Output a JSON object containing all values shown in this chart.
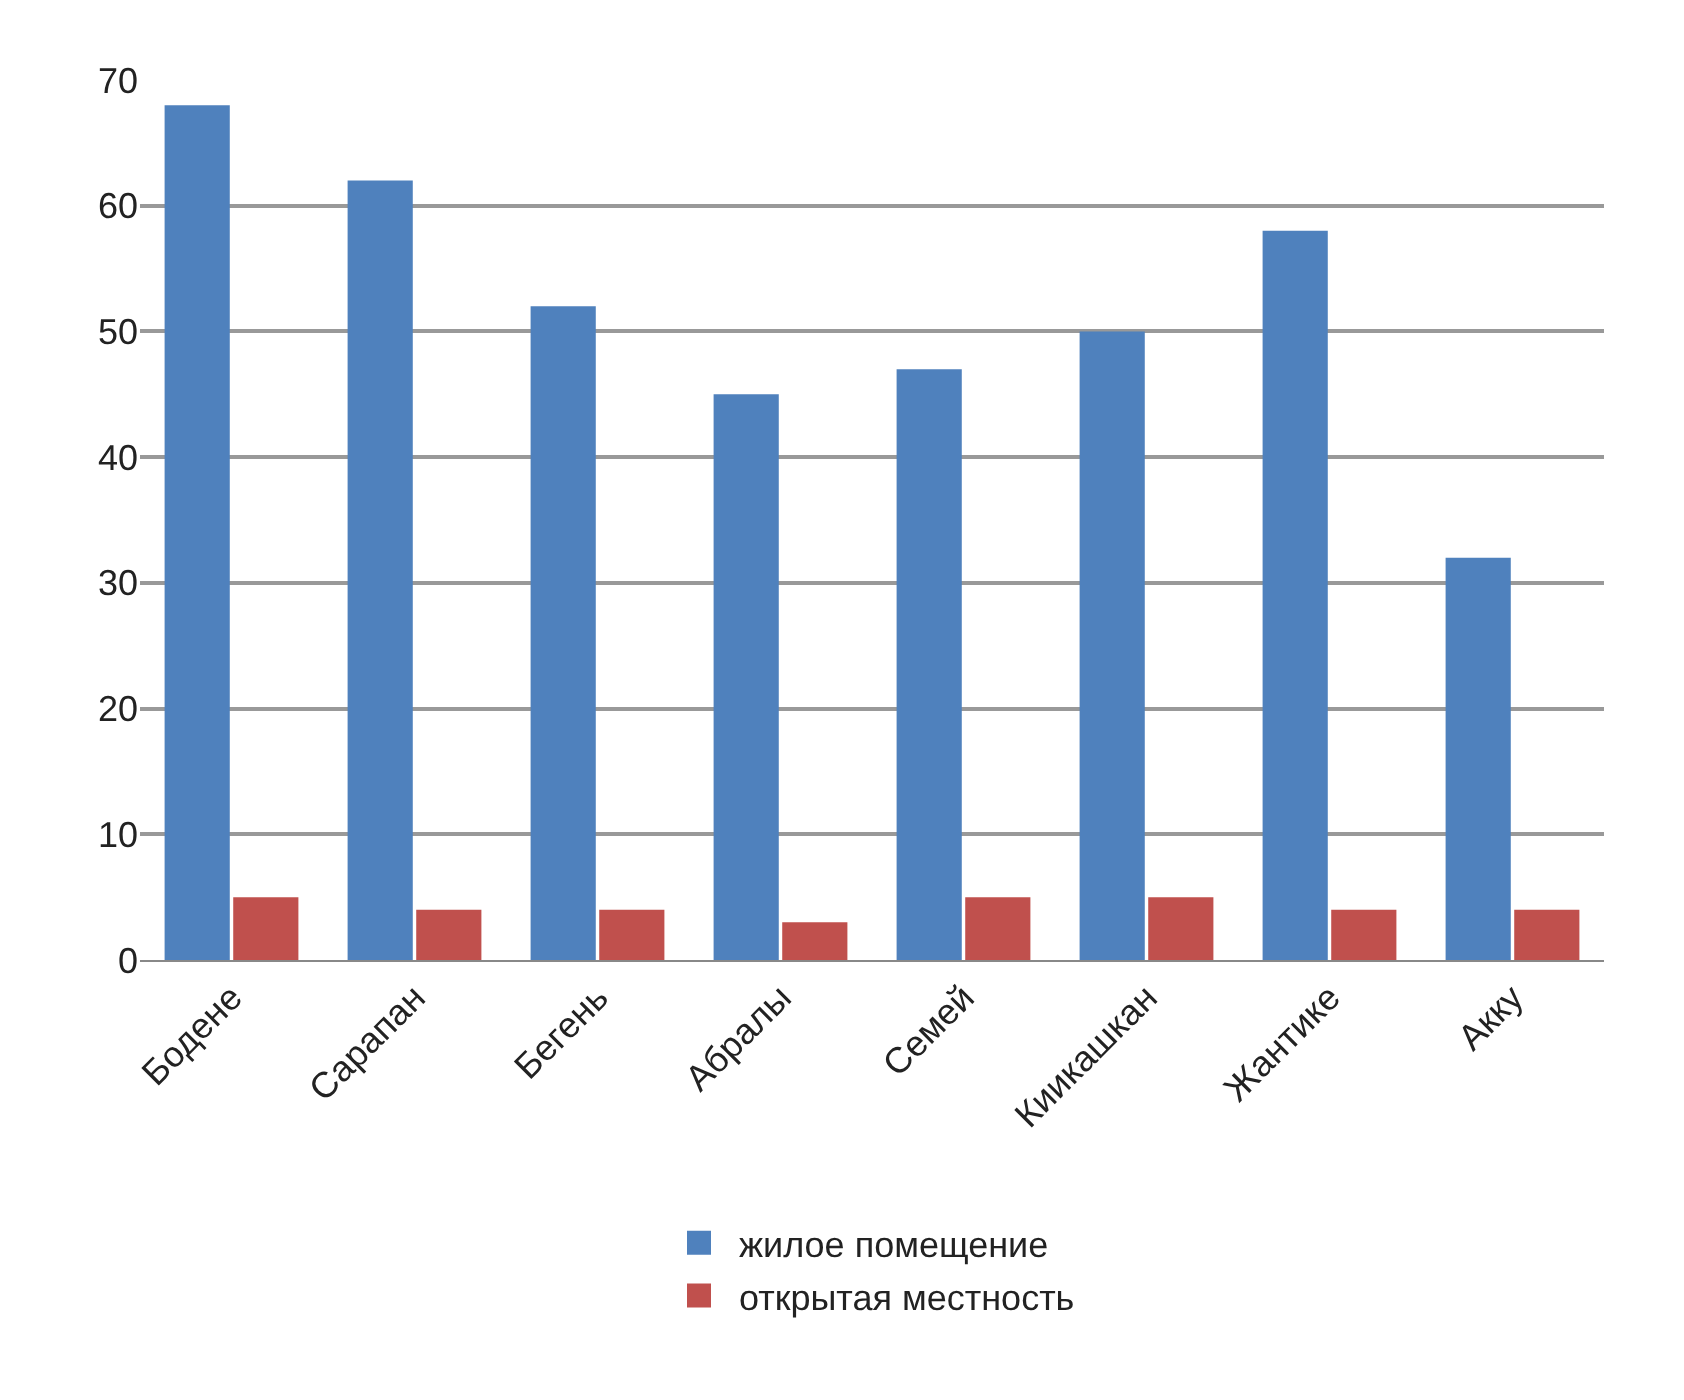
{
  "chart_data": {
    "type": "bar",
    "categories": [
      "Бодене",
      "Сарапан",
      "Бегень",
      "Абралы",
      "Семей",
      "Киикашкан",
      "Жантике",
      "Акку"
    ],
    "series": [
      {
        "name": "жилое помещение",
        "color": "#4f81bd",
        "values": [
          68,
          62,
          52,
          45,
          47,
          50,
          58,
          32
        ]
      },
      {
        "name": "открытая местность",
        "color": "#c0504d",
        "values": [
          5,
          4,
          4,
          3,
          5,
          5,
          4,
          4
        ]
      }
    ],
    "ylim": [
      0,
      70
    ],
    "yticks": [
      0,
      10,
      20,
      30,
      40,
      50,
      60,
      70
    ],
    "grid": "y",
    "legend": "bottom"
  }
}
